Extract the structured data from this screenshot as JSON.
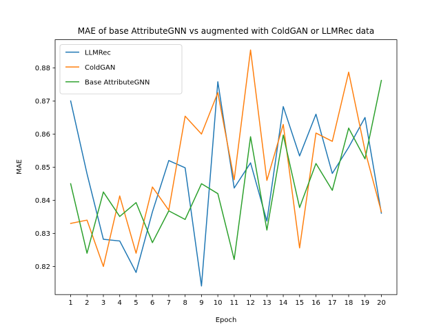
{
  "chart_data": {
    "type": "line",
    "title": "MAE of base AttributeGNN vs augmented with ColdGAN or LLMRec data",
    "xlabel": "Epoch",
    "ylabel": "MAE",
    "x": [
      1,
      2,
      3,
      4,
      5,
      6,
      7,
      8,
      9,
      10,
      11,
      12,
      13,
      14,
      15,
      16,
      17,
      18,
      19,
      20
    ],
    "xticks": [
      "1",
      "2",
      "3",
      "4",
      "5",
      "6",
      "7",
      "8",
      "9",
      "10",
      "11",
      "12",
      "13",
      "14",
      "15",
      "16",
      "17",
      "18",
      "19",
      "20"
    ],
    "yticks": [
      "0.82",
      "0.83",
      "0.84",
      "0.85",
      "0.86",
      "0.87",
      "0.88"
    ],
    "ytick_values": [
      0.82,
      0.83,
      0.84,
      0.85,
      0.86,
      0.87,
      0.88
    ],
    "xlim": [
      0.05,
      20.95
    ],
    "ylim": [
      0.8115,
      0.8885
    ],
    "grid": false,
    "legend_position": "upper-left",
    "series": [
      {
        "name": "LLMRec",
        "color": "#1f77b4",
        "values": [
          0.87,
          0.848,
          0.8282,
          0.8277,
          0.8182,
          0.8365,
          0.852,
          0.8498,
          0.8141,
          0.8758,
          0.8437,
          0.8513,
          0.8337,
          0.8683,
          0.8534,
          0.866,
          0.8481,
          0.856,
          0.865,
          0.8361
        ]
      },
      {
        "name": "ColdGAN",
        "color": "#ff7f0e",
        "values": [
          0.833,
          0.834,
          0.82,
          0.8413,
          0.824,
          0.844,
          0.837,
          0.8654,
          0.86,
          0.8725,
          0.8462,
          0.8854,
          0.846,
          0.8629,
          0.8256,
          0.8603,
          0.8578,
          0.8787,
          0.855,
          0.8365
        ]
      },
      {
        "name": "Base AttributeGNN",
        "color": "#2ca02c",
        "values": [
          0.845,
          0.824,
          0.8425,
          0.8351,
          0.8393,
          0.8272,
          0.8368,
          0.8342,
          0.845,
          0.842,
          0.8221,
          0.8592,
          0.831,
          0.8597,
          0.8378,
          0.8511,
          0.843,
          0.8618,
          0.8525,
          0.8762
        ]
      }
    ]
  }
}
